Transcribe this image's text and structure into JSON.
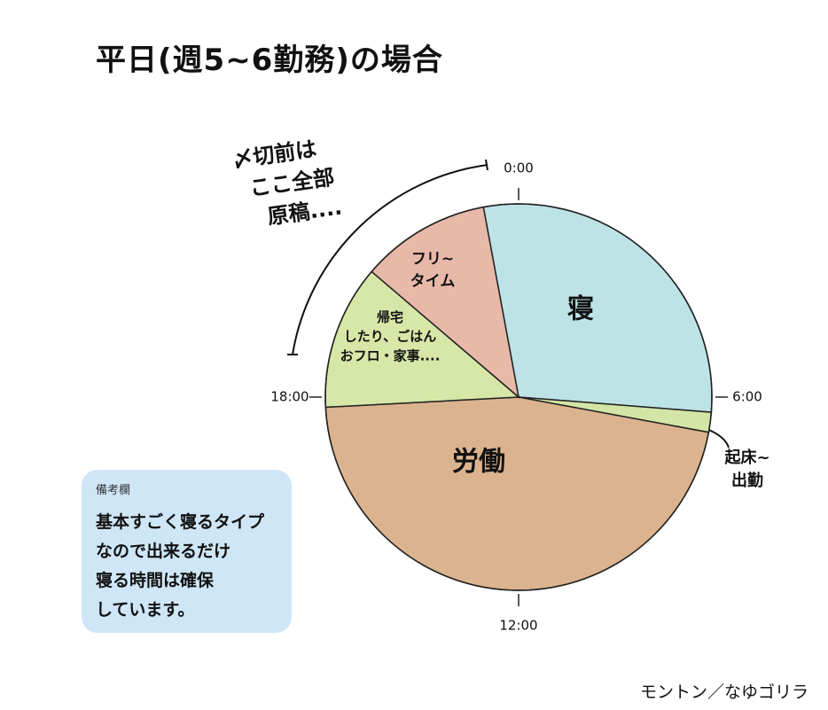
{
  "chart_data": {
    "type": "pie",
    "title": "平日(週5~6勤務)の場合",
    "start": 23.3,
    "categories": [
      [
        "寝"
      ],
      [
        "起床~",
        "出勤"
      ],
      [
        "労働"
      ],
      [
        "帰宅",
        "したり、ごはん",
        "おフロ・家事...."
      ],
      [
        "フリ~",
        "タイム"
      ]
    ],
    "values": [
      7.0,
      0.4,
      11.1,
      2.9,
      2.6
    ],
    "colors": [
      "#bde3e6",
      "#d4e6a6",
      "#dbb48f",
      "#d6e7a7",
      "#e8b8a9"
    ],
    "ticks": [
      {
        "value": 0,
        "label": "0:00"
      },
      {
        "value": 6,
        "label": "6:00"
      },
      {
        "value": 12,
        "label": "12:00"
      },
      {
        "value": 18,
        "label": "18:00"
      }
    ],
    "annotation": [
      "〆切前は",
      "ここ全部",
      "原稿...."
    ]
  },
  "note": {
    "heading": "備考欄",
    "lines": [
      "基本すごく寝るタイプ",
      "なので出来るだけ",
      "寝る時間は確保",
      "しています。"
    ]
  },
  "credit": "モントン／なゆゴリラ"
}
